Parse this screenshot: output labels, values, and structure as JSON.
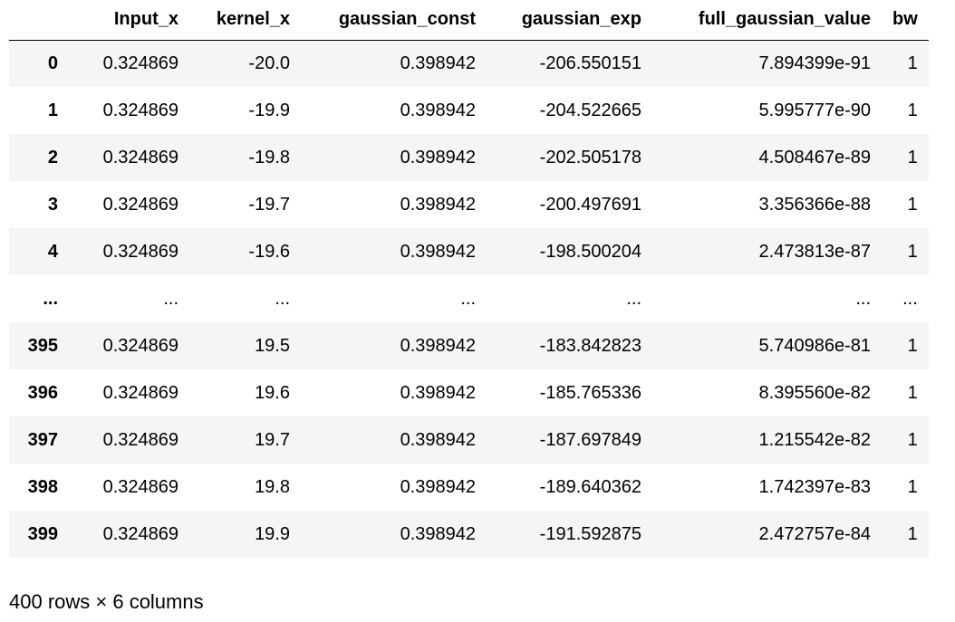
{
  "table": {
    "columns": [
      "Input_x",
      "kernel_x",
      "gaussian_const",
      "gaussian_exp",
      "full_gaussian_value",
      "bw"
    ],
    "rows": [
      {
        "index": "0",
        "cells": [
          "0.324869",
          "-20.0",
          "0.398942",
          "-206.550151",
          "7.894399e-91",
          "1"
        ]
      },
      {
        "index": "1",
        "cells": [
          "0.324869",
          "-19.9",
          "0.398942",
          "-204.522665",
          "5.995777e-90",
          "1"
        ]
      },
      {
        "index": "2",
        "cells": [
          "0.324869",
          "-19.8",
          "0.398942",
          "-202.505178",
          "4.508467e-89",
          "1"
        ]
      },
      {
        "index": "3",
        "cells": [
          "0.324869",
          "-19.7",
          "0.398942",
          "-200.497691",
          "3.356366e-88",
          "1"
        ]
      },
      {
        "index": "4",
        "cells": [
          "0.324869",
          "-19.6",
          "0.398942",
          "-198.500204",
          "2.473813e-87",
          "1"
        ]
      },
      {
        "index": "...",
        "cells": [
          "...",
          "...",
          "...",
          "...",
          "...",
          "..."
        ]
      },
      {
        "index": "395",
        "cells": [
          "0.324869",
          "19.5",
          "0.398942",
          "-183.842823",
          "5.740986e-81",
          "1"
        ]
      },
      {
        "index": "396",
        "cells": [
          "0.324869",
          "19.6",
          "0.398942",
          "-185.765336",
          "8.395560e-82",
          "1"
        ]
      },
      {
        "index": "397",
        "cells": [
          "0.324869",
          "19.7",
          "0.398942",
          "-187.697849",
          "1.215542e-82",
          "1"
        ]
      },
      {
        "index": "398",
        "cells": [
          "0.324869",
          "19.8",
          "0.398942",
          "-189.640362",
          "1.742397e-83",
          "1"
        ]
      },
      {
        "index": "399",
        "cells": [
          "0.324869",
          "19.9",
          "0.398942",
          "-191.592875",
          "2.472757e-84",
          "1"
        ]
      }
    ]
  },
  "footer": "400 rows × 6 columns"
}
